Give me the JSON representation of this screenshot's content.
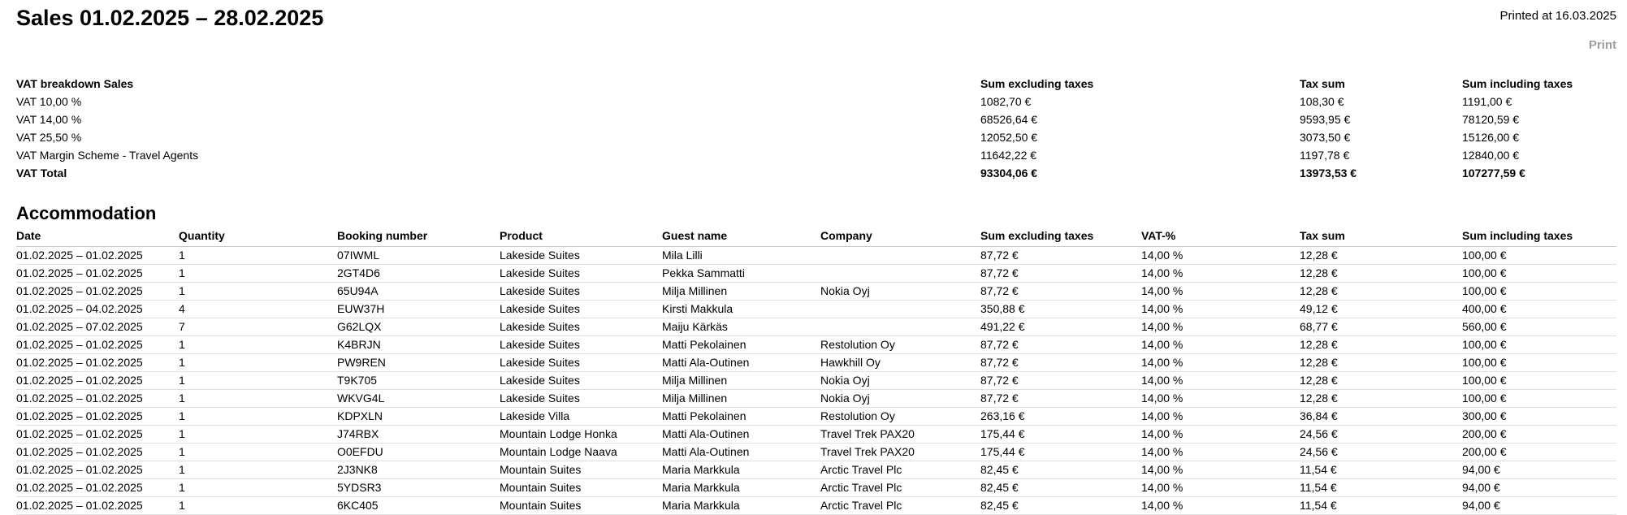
{
  "header": {
    "title": "Sales 01.02.2025 – 28.02.2025",
    "printed_at": "Printed at 16.03.2025",
    "print_label": "Print"
  },
  "colors": {
    "print_link": "#9b9ea3",
    "row_border": "#e0e0e0",
    "header_border": "#c8c8c8",
    "text": "#000000"
  },
  "vat_breakdown": {
    "title": "VAT breakdown Sales",
    "headers": [
      "Sum excluding taxes",
      "Tax sum",
      "Sum including taxes"
    ],
    "rows": [
      {
        "label": "VAT 10,00 %",
        "values": [
          "1082,70 €",
          "108,30 €",
          "1191,00 €"
        ],
        "bold": false
      },
      {
        "label": "VAT 14,00 %",
        "values": [
          "68526,64 €",
          "9593,95 €",
          "78120,59 €"
        ],
        "bold": false
      },
      {
        "label": "VAT 25,50 %",
        "values": [
          "12052,50 €",
          "3073,50 €",
          "15126,00 €"
        ],
        "bold": false
      },
      {
        "label": "VAT Margin Scheme - Travel Agents",
        "values": [
          "11642,22 €",
          "1197,78 €",
          "12840,00 €"
        ],
        "bold": false
      },
      {
        "label": "VAT Total",
        "values": [
          "93304,06 €",
          "13973,53 €",
          "107277,59 €"
        ],
        "bold": true
      }
    ]
  },
  "accommodation": {
    "title": "Accommodation",
    "columns": [
      "Date",
      "Quantity",
      "Booking number",
      "Product",
      "Guest name",
      "Company",
      "Sum excluding taxes",
      "VAT-%",
      "Tax sum",
      "Sum including taxes"
    ],
    "rows": [
      [
        "01.02.2025 – 01.02.2025",
        "1",
        "07IWML",
        "Lakeside Suites",
        "Mila Lilli",
        "",
        "87,72 €",
        "14,00 %",
        "12,28 €",
        "100,00 €"
      ],
      [
        "01.02.2025 – 01.02.2025",
        "1",
        "2GT4D6",
        "Lakeside Suites",
        "Pekka Sammatti",
        "",
        "87,72 €",
        "14,00 %",
        "12,28 €",
        "100,00 €"
      ],
      [
        "01.02.2025 – 01.02.2025",
        "1",
        "65U94A",
        "Lakeside Suites",
        "Milja Millinen",
        "Nokia Oyj",
        "87,72 €",
        "14,00 %",
        "12,28 €",
        "100,00 €"
      ],
      [
        "01.02.2025 – 04.02.2025",
        "4",
        "EUW37H",
        "Lakeside Suites",
        "Kirsti Makkula",
        "",
        "350,88 €",
        "14,00 %",
        "49,12 €",
        "400,00 €"
      ],
      [
        "01.02.2025 – 07.02.2025",
        "7",
        "G62LQX",
        "Lakeside Suites",
        "Maiju Kärkäs",
        "",
        "491,22 €",
        "14,00 %",
        "68,77 €",
        "560,00 €"
      ],
      [
        "01.02.2025 – 01.02.2025",
        "1",
        "K4BRJN",
        "Lakeside Suites",
        "Matti Pekolainen",
        "Restolution Oy",
        "87,72 €",
        "14,00 %",
        "12,28 €",
        "100,00 €"
      ],
      [
        "01.02.2025 – 01.02.2025",
        "1",
        "PW9REN",
        "Lakeside Suites",
        "Matti Ala-Outinen",
        "Hawkhill Oy",
        "87,72 €",
        "14,00 %",
        "12,28 €",
        "100,00 €"
      ],
      [
        "01.02.2025 – 01.02.2025",
        "1",
        "T9K705",
        "Lakeside Suites",
        "Milja Millinen",
        "Nokia Oyj",
        "87,72 €",
        "14,00 %",
        "12,28 €",
        "100,00 €"
      ],
      [
        "01.02.2025 – 01.02.2025",
        "1",
        "WKVG4L",
        "Lakeside Suites",
        "Milja Millinen",
        "Nokia Oyj",
        "87,72 €",
        "14,00 %",
        "12,28 €",
        "100,00 €"
      ],
      [
        "01.02.2025 – 01.02.2025",
        "1",
        "KDPXLN",
        "Lakeside Villa",
        "Matti Pekolainen",
        "Restolution Oy",
        "263,16 €",
        "14,00 %",
        "36,84 €",
        "300,00 €"
      ],
      [
        "01.02.2025 – 01.02.2025",
        "1",
        "J74RBX",
        "Mountain Lodge Honka",
        "Matti Ala-Outinen",
        "Travel Trek PAX20",
        "175,44 €",
        "14,00 %",
        "24,56 €",
        "200,00 €"
      ],
      [
        "01.02.2025 – 01.02.2025",
        "1",
        "O0EFDU",
        "Mountain Lodge Naava",
        "Matti Ala-Outinen",
        "Travel Trek PAX20",
        "175,44 €",
        "14,00 %",
        "24,56 €",
        "200,00 €"
      ],
      [
        "01.02.2025 – 01.02.2025",
        "1",
        "2J3NK8",
        "Mountain Suites",
        "Maria Markkula",
        "Arctic Travel Plc",
        "82,45 €",
        "14,00 %",
        "11,54 €",
        "94,00 €"
      ],
      [
        "01.02.2025 – 01.02.2025",
        "1",
        "5YDSR3",
        "Mountain Suites",
        "Maria Markkula",
        "Arctic Travel Plc",
        "82,45 €",
        "14,00 %",
        "11,54 €",
        "94,00 €"
      ],
      [
        "01.02.2025 – 01.02.2025",
        "1",
        "6KC405",
        "Mountain Suites",
        "Maria Markkula",
        "Arctic Travel Plc",
        "82,45 €",
        "14,00 %",
        "11,54 €",
        "94,00 €"
      ]
    ]
  }
}
